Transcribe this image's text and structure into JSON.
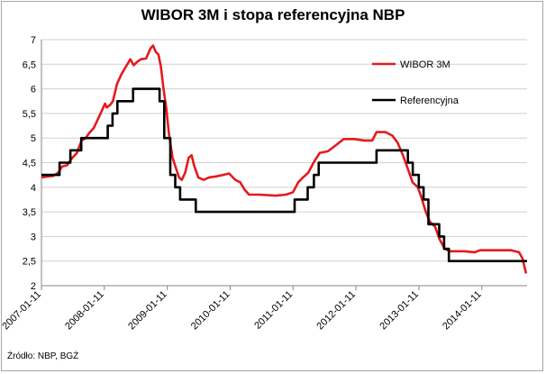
{
  "chart_data": {
    "type": "line",
    "title": "WIBOR 3M i stopa referencyjna NBP",
    "source": "Źródło: NBP, BGŻ",
    "xlabel": "",
    "ylabel": "",
    "ylim": [
      2,
      7
    ],
    "yticks": [
      "2",
      "2,5",
      "3",
      "3,5",
      "4",
      "4,5",
      "5",
      "5,5",
      "6",
      "6,5",
      "7"
    ],
    "xlim": [
      "2007-01-11",
      "2014-10-01"
    ],
    "xticks": [
      "2007-01-11",
      "2008-01-11",
      "2009-01-11",
      "2010-01-11",
      "2011-01-11",
      "2012-01-11",
      "2013-01-11",
      "2014-01-11"
    ],
    "grid": "horizontal",
    "legend_position": "right",
    "series": [
      {
        "name": "WIBOR 3M",
        "color": "#e41a1c",
        "points": [
          [
            "2007-01-11",
            4.2
          ],
          [
            "2007-02-15",
            4.22
          ],
          [
            "2007-03-20",
            4.23
          ],
          [
            "2007-04-20",
            4.3
          ],
          [
            "2007-05-10",
            4.42
          ],
          [
            "2007-06-10",
            4.45
          ],
          [
            "2007-07-05",
            4.58
          ],
          [
            "2007-08-05",
            4.7
          ],
          [
            "2007-09-01",
            4.95
          ],
          [
            "2007-09-25",
            5.0
          ],
          [
            "2007-10-15",
            5.1
          ],
          [
            "2007-11-10",
            5.2
          ],
          [
            "2007-12-10",
            5.42
          ],
          [
            "2008-01-05",
            5.62
          ],
          [
            "2008-01-15",
            5.7
          ],
          [
            "2008-01-25",
            5.62
          ],
          [
            "2008-02-15",
            5.68
          ],
          [
            "2008-03-01",
            5.75
          ],
          [
            "2008-03-25",
            6.1
          ],
          [
            "2008-04-20",
            6.3
          ],
          [
            "2008-05-15",
            6.45
          ],
          [
            "2008-06-10",
            6.6
          ],
          [
            "2008-06-30",
            6.48
          ],
          [
            "2008-07-20",
            6.55
          ],
          [
            "2008-08-10",
            6.6
          ],
          [
            "2008-09-10",
            6.62
          ],
          [
            "2008-10-05",
            6.82
          ],
          [
            "2008-10-20",
            6.88
          ],
          [
            "2008-11-05",
            6.75
          ],
          [
            "2008-11-20",
            6.7
          ],
          [
            "2008-12-05",
            6.45
          ],
          [
            "2008-12-20",
            6.0
          ],
          [
            "2009-01-05",
            5.6
          ],
          [
            "2009-01-20",
            5.1
          ],
          [
            "2009-02-10",
            4.6
          ],
          [
            "2009-03-01",
            4.4
          ],
          [
            "2009-03-20",
            4.2
          ],
          [
            "2009-04-05",
            4.15
          ],
          [
            "2009-04-25",
            4.3
          ],
          [
            "2009-05-15",
            4.6
          ],
          [
            "2009-06-01",
            4.65
          ],
          [
            "2009-06-15",
            4.45
          ],
          [
            "2009-07-10",
            4.2
          ],
          [
            "2009-08-10",
            4.15
          ],
          [
            "2009-09-10",
            4.2
          ],
          [
            "2009-10-20",
            4.22
          ],
          [
            "2009-12-01",
            4.25
          ],
          [
            "2010-01-05",
            4.28
          ],
          [
            "2010-02-10",
            4.15
          ],
          [
            "2010-03-10",
            4.1
          ],
          [
            "2010-04-05",
            3.95
          ],
          [
            "2010-05-01",
            3.85
          ],
          [
            "2010-07-01",
            3.85
          ],
          [
            "2010-10-01",
            3.83
          ],
          [
            "2010-12-01",
            3.85
          ],
          [
            "2011-01-11",
            3.9
          ],
          [
            "2011-02-10",
            4.1
          ],
          [
            "2011-03-10",
            4.2
          ],
          [
            "2011-04-10",
            4.3
          ],
          [
            "2011-05-10",
            4.5
          ],
          [
            "2011-06-15",
            4.7
          ],
          [
            "2011-08-01",
            4.73
          ],
          [
            "2011-09-15",
            4.85
          ],
          [
            "2011-11-01",
            4.98
          ],
          [
            "2012-01-01",
            4.98
          ],
          [
            "2012-03-01",
            4.95
          ],
          [
            "2012-04-15",
            4.95
          ],
          [
            "2012-05-10",
            5.12
          ],
          [
            "2012-07-01",
            5.12
          ],
          [
            "2012-08-10",
            5.05
          ],
          [
            "2012-09-10",
            4.9
          ],
          [
            "2012-10-10",
            4.65
          ],
          [
            "2012-11-05",
            4.4
          ],
          [
            "2012-12-05",
            4.1
          ],
          [
            "2013-01-05",
            4.0
          ],
          [
            "2013-01-25",
            3.8
          ],
          [
            "2013-02-20",
            3.5
          ],
          [
            "2013-03-15",
            3.3
          ],
          [
            "2013-04-15",
            3.2
          ],
          [
            "2013-05-10",
            2.95
          ],
          [
            "2013-06-10",
            2.75
          ],
          [
            "2013-07-10",
            2.7
          ],
          [
            "2013-10-01",
            2.7
          ],
          [
            "2013-12-01",
            2.68
          ],
          [
            "2014-01-01",
            2.72
          ],
          [
            "2014-04-01",
            2.72
          ],
          [
            "2014-07-01",
            2.72
          ],
          [
            "2014-08-15",
            2.68
          ],
          [
            "2014-09-05",
            2.55
          ],
          [
            "2014-09-25",
            2.25
          ]
        ]
      },
      {
        "name": "Referencyjna",
        "color": "#000000",
        "step": true,
        "points": [
          [
            "2007-01-11",
            4.25
          ],
          [
            "2007-04-26",
            4.5
          ],
          [
            "2007-06-28",
            4.75
          ],
          [
            "2007-08-30",
            5.0
          ],
          [
            "2007-11-29",
            5.0
          ],
          [
            "2007-11-30",
            5.0
          ],
          [
            "2008-01-31",
            5.25
          ],
          [
            "2008-02-28",
            5.5
          ],
          [
            "2008-03-27",
            5.75
          ],
          [
            "2008-06-26",
            6.0
          ],
          [
            "2008-11-27",
            5.75
          ],
          [
            "2008-12-24",
            5.0
          ],
          [
            "2009-01-28",
            4.25
          ],
          [
            "2009-02-26",
            4.0
          ],
          [
            "2009-03-26",
            3.75
          ],
          [
            "2009-06-25",
            3.5
          ],
          [
            "2011-01-20",
            3.75
          ],
          [
            "2011-04-06",
            4.0
          ],
          [
            "2011-05-12",
            4.25
          ],
          [
            "2011-06-09",
            4.5
          ],
          [
            "2012-05-10",
            4.75
          ],
          [
            "2012-11-08",
            4.5
          ],
          [
            "2012-12-06",
            4.25
          ],
          [
            "2013-01-10",
            4.0
          ],
          [
            "2013-02-07",
            3.75
          ],
          [
            "2013-03-07",
            3.25
          ],
          [
            "2013-05-09",
            3.0
          ],
          [
            "2013-06-06",
            2.75
          ],
          [
            "2013-07-04",
            2.5
          ],
          [
            "2014-10-01",
            2.5
          ]
        ]
      }
    ]
  }
}
